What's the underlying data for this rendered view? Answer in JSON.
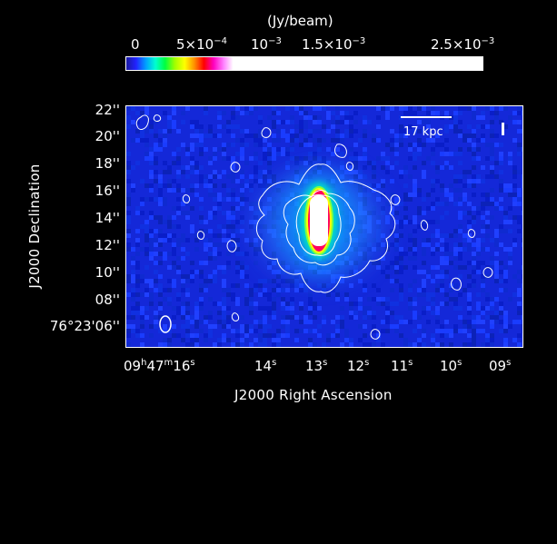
{
  "colorbar": {
    "unit_label": "(Jy/beam)",
    "ticks": [
      {
        "label": "0"
      },
      {
        "mantissa": "5×10",
        "exp": "−4"
      },
      {
        "mantissa": "10",
        "exp": "−3"
      },
      {
        "mantissa": "1.5×10",
        "exp": "−3"
      },
      {
        "mantissa": "2.5×10",
        "exp": "−3"
      }
    ],
    "colors": [
      "#1a1aa0",
      "#2222ff",
      "#00a0ff",
      "#00ffd0",
      "#00ff40",
      "#a0ff00",
      "#ffff00",
      "#ff9000",
      "#ff0000",
      "#ff00c0",
      "#ff80ff",
      "#ffffff"
    ]
  },
  "image": {
    "scale_bar_label": "17 kpc",
    "background_color": "#1428d8",
    "source_colors": [
      "#ffffff",
      "#ff0060",
      "#ffff00",
      "#00ff80",
      "#00c0ff"
    ]
  },
  "axes": {
    "x_label": "J2000 Right Ascension",
    "y_label": "J2000 Declination",
    "y_ticks": [
      {
        "text": "22''"
      },
      {
        "text": "20''"
      },
      {
        "text": "18''"
      },
      {
        "text": "16''"
      },
      {
        "text": "14''"
      },
      {
        "text": "12''"
      },
      {
        "text": "10''"
      },
      {
        "text": "08''"
      },
      {
        "text": "76°23'06''"
      }
    ],
    "x_ticks": [
      {
        "main": "09",
        "h": "h",
        "m_val": "47",
        "m": "m",
        "s_val": "16",
        "s": "s"
      },
      {
        "main": "14",
        "s": "s"
      },
      {
        "main": "13",
        "s": "s"
      },
      {
        "main": "12",
        "s": "s"
      },
      {
        "main": "11",
        "s": "s"
      },
      {
        "main": "10",
        "s": "s"
      },
      {
        "main": "09",
        "s": "s"
      }
    ]
  }
}
